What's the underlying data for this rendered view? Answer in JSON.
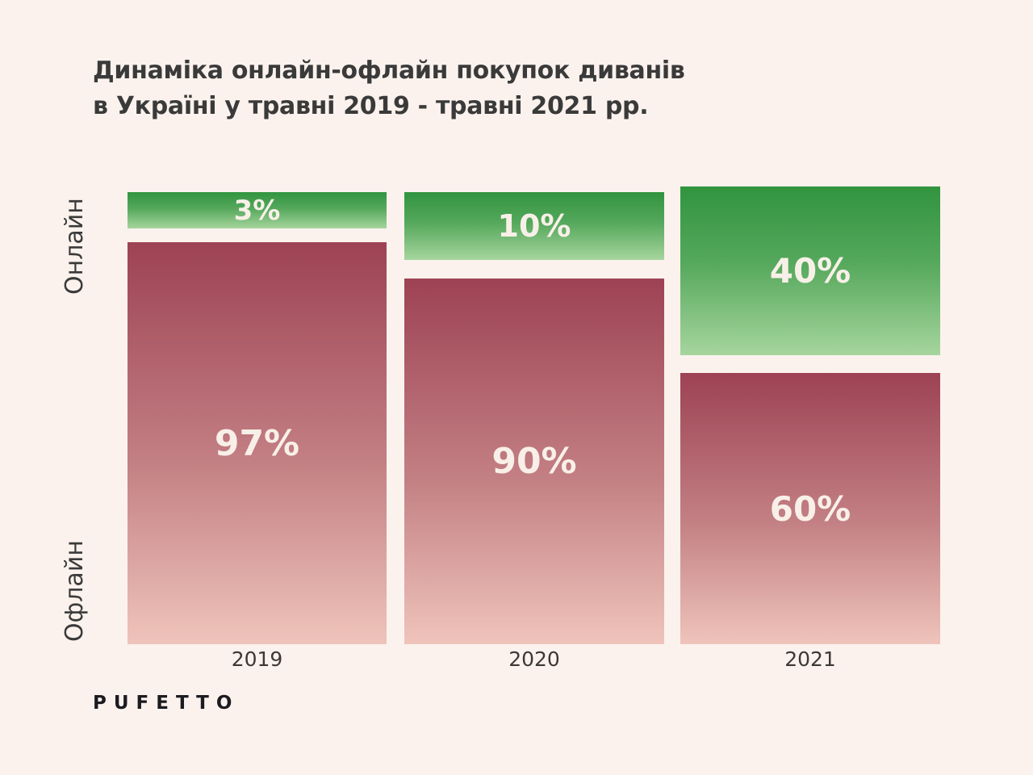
{
  "title": {
    "line1": "Динаміка онлайн-офлайн покупок диванів",
    "line2": "в Україні у травні 2019 - травні 2021 рр."
  },
  "axis": {
    "online": "Онлайн",
    "offline": "Офлайн"
  },
  "logo": "PUFETTO",
  "colors": {
    "background": "#fbf2ed",
    "text": "#3a3a3a",
    "bar_label": "#f8f0e8",
    "green_top": "#31943f",
    "green_bottom": "#a6d59d",
    "red_top": "#9d4254",
    "red_bottom": "#efc4bb"
  },
  "chart_data": {
    "type": "bar",
    "subtype": "stacked-percentage-columns",
    "title": "Динаміка онлайн-офлайн покупок диванів в Україні у травні 2019 - травні 2021 рр.",
    "categories": [
      "2019",
      "2020",
      "2021"
    ],
    "series": [
      {
        "name": "Онлайн",
        "values": [
          3,
          10,
          40
        ],
        "color": "green-gradient"
      },
      {
        "name": "Офлайн",
        "values": [
          97,
          90,
          60
        ],
        "color": "red-gradient"
      }
    ],
    "unit": "%",
    "xlabel": "",
    "ylabel": "Онлайн / Офлайн",
    "legend_position": "left-axis-rotated",
    "grid": false
  },
  "columns": [
    {
      "year": "2019",
      "online_label": "3%",
      "offline_label": "97%"
    },
    {
      "year": "2020",
      "online_label": "10%",
      "offline_label": "90%"
    },
    {
      "year": "2021",
      "online_label": "40%",
      "offline_label": "60%"
    }
  ]
}
